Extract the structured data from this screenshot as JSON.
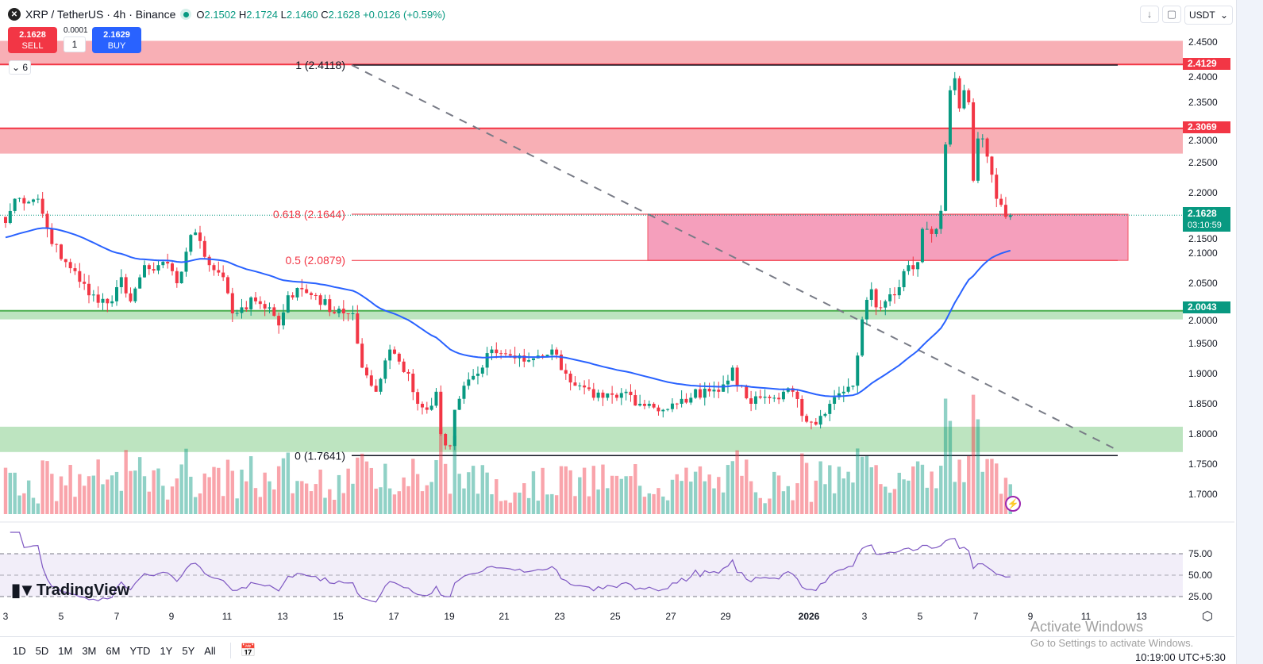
{
  "header": {
    "symbol": "XRP / TetherUS · 4h · Binance",
    "logo_icon": "xrp-logo",
    "o_label": "O",
    "o": "2.1502",
    "h_label": "H",
    "h": "2.1724",
    "l_label": "L",
    "l": "2.1460",
    "c_label": "C",
    "c": "2.1628",
    "change": "+0.0126 (+0.59%)",
    "status_color": "#089981"
  },
  "trade": {
    "sell_price": "2.1628",
    "sell_label": "SELL",
    "buy_price": "2.1629",
    "buy_label": "BUY",
    "spread": "0.0001",
    "quantity": "1",
    "indicators_count": "6"
  },
  "top_right": {
    "download_icon": "↓",
    "fullscreen_icon": "▢",
    "currency": "USDT"
  },
  "price_labels": [
    {
      "value": "2.4129",
      "color": "#f23645"
    },
    {
      "value": "2.3069",
      "color": "#f23645"
    },
    {
      "value": "2.1628",
      "countdown": "03:10:59",
      "color": "#089981"
    },
    {
      "value": "2.0043",
      "color": "#089981"
    }
  ],
  "price_axis": [
    "2.4500",
    "2.4000",
    "2.3500",
    "2.3000",
    "2.2500",
    "2.2000",
    "2.1500",
    "2.1000",
    "2.0500",
    "2.0000",
    "1.9500",
    "1.9000",
    "1.8500",
    "1.8000",
    "1.7500",
    "1.7000"
  ],
  "fib": {
    "levels": [
      {
        "ratio": "1",
        "label": "1 (2.4118)",
        "price": 2.4118,
        "color": "#131722"
      },
      {
        "ratio": "0.618",
        "label": "0.618 (2.1644)",
        "price": 2.1644,
        "color": "#f23645"
      },
      {
        "ratio": "0.5",
        "label": "0.5 (2.0879)",
        "price": 2.0879,
        "color": "#f23645"
      },
      {
        "ratio": "0",
        "label": "0 (1.7641)",
        "price": 1.7641,
        "color": "#131722"
      }
    ]
  },
  "zones": [
    {
      "name": "resistance-top",
      "from": 2.4129,
      "to": 2.452,
      "color": "#f7a1a8"
    },
    {
      "name": "resistance-mid",
      "from": 2.265,
      "to": 2.3069,
      "color": "#f7a1a8"
    },
    {
      "name": "support-mid",
      "from": 1.99,
      "to": 2.0043,
      "color": "#b2dfb5"
    },
    {
      "name": "support-low",
      "from": 1.77,
      "to": 1.812,
      "color": "#b2dfb5"
    }
  ],
  "x_axis": [
    "3",
    "5",
    "7",
    "9",
    "11",
    "13",
    "15",
    "17",
    "19",
    "21",
    "23",
    "25",
    "27",
    "29",
    "2026",
    "3",
    "5",
    "7",
    "9",
    "11",
    "13"
  ],
  "rsi_axis": [
    "75.00",
    "50.00",
    "25.00"
  ],
  "branding": "TradingView",
  "bottom": {
    "ranges": [
      "1D",
      "5D",
      "1M",
      "3M",
      "6M",
      "YTD",
      "1Y",
      "5Y",
      "All"
    ],
    "calendar_icon": "goto-date",
    "clock": "10:19:00 UTC+5:30"
  },
  "watermark": {
    "line1": "Activate Windows",
    "line2": "Go to Settings to activate Windows."
  },
  "chart_data": {
    "type": "candlestick",
    "interval": "4h",
    "ylim": [
      1.67,
      2.47
    ],
    "up_color": "#089981",
    "down_color": "#f23645",
    "ma_color": "#2962ff",
    "rsi_color": "#7e57c2",
    "close_path": [
      {
        "t": "2025-12-03T00:00",
        "c": 2.15
      },
      {
        "t": "2025-12-03T08:00",
        "c": 2.19
      },
      {
        "t": "2025-12-04T04:00",
        "c": 2.19
      },
      {
        "t": "2025-12-04T12:00",
        "c": 2.14
      },
      {
        "t": "2025-12-05T00:00",
        "c": 2.09
      },
      {
        "t": "2025-12-05T12:00",
        "c": 2.07
      },
      {
        "t": "2025-12-06T00:00",
        "c": 2.03
      },
      {
        "t": "2025-12-06T20:00",
        "c": 2.02
      },
      {
        "t": "2025-12-07T04:00",
        "c": 2.06
      },
      {
        "t": "2025-12-07T12:00",
        "c": 2.02
      },
      {
        "t": "2025-12-08T00:00",
        "c": 2.08
      },
      {
        "t": "2025-12-08T12:00",
        "c": 2.08
      },
      {
        "t": "2025-12-09T00:00",
        "c": 2.07
      },
      {
        "t": "2025-12-09T04:00",
        "c": 2.05
      },
      {
        "t": "2025-12-09T16:00",
        "c": 2.13
      },
      {
        "t": "2025-12-10T00:00",
        "c": 2.12
      },
      {
        "t": "2025-12-10T08:00",
        "c": 2.08
      },
      {
        "t": "2025-12-10T20:00",
        "c": 2.06
      },
      {
        "t": "2025-12-11T04:00",
        "c": 2.0
      },
      {
        "t": "2025-12-11T12:00",
        "c": 2.01
      },
      {
        "t": "2025-12-12T00:00",
        "c": 2.02
      },
      {
        "t": "2025-12-12T12:00",
        "c": 2.01
      },
      {
        "t": "2025-12-12T20:00",
        "c": 1.98
      },
      {
        "t": "2025-12-13T04:00",
        "c": 2.03
      },
      {
        "t": "2025-12-13T16:00",
        "c": 2.04
      },
      {
        "t": "2025-12-14T04:00",
        "c": 2.03
      },
      {
        "t": "2025-12-14T20:00",
        "c": 2.0
      },
      {
        "t": "2025-12-15T04:00",
        "c": 2.0
      },
      {
        "t": "2025-12-15T12:00",
        "c": 2.0
      },
      {
        "t": "2025-12-15T20:00",
        "c": 1.91
      },
      {
        "t": "2025-12-16T04:00",
        "c": 1.88
      },
      {
        "t": "2025-12-16T08:00",
        "c": 1.87
      },
      {
        "t": "2025-12-16T20:00",
        "c": 1.94
      },
      {
        "t": "2025-12-17T04:00",
        "c": 1.92
      },
      {
        "t": "2025-12-17T12:00",
        "c": 1.9
      },
      {
        "t": "2025-12-17T20:00",
        "c": 1.85
      },
      {
        "t": "2025-12-18T04:00",
        "c": 1.84
      },
      {
        "t": "2025-12-18T12:00",
        "c": 1.87
      },
      {
        "t": "2025-12-18T16:00",
        "c": 1.8
      },
      {
        "t": "2025-12-19T00:00",
        "c": 1.78
      },
      {
        "t": "2025-12-19T04:00",
        "c": 1.84
      },
      {
        "t": "2025-12-19T12:00",
        "c": 1.88
      },
      {
        "t": "2025-12-20T00:00",
        "c": 1.9
      },
      {
        "t": "2025-12-20T04:00",
        "c": 1.91
      },
      {
        "t": "2025-12-20T12:00",
        "c": 1.94
      },
      {
        "t": "2025-12-21T04:00",
        "c": 1.93
      },
      {
        "t": "2025-12-21T16:00",
        "c": 1.92
      },
      {
        "t": "2025-12-22T04:00",
        "c": 1.93
      },
      {
        "t": "2025-12-22T16:00",
        "c": 1.94
      },
      {
        "t": "2025-12-23T04:00",
        "c": 1.9
      },
      {
        "t": "2025-12-23T12:00",
        "c": 1.88
      },
      {
        "t": "2025-12-24T04:00",
        "c": 1.86
      },
      {
        "t": "2025-12-24T12:00",
        "c": 1.86
      },
      {
        "t": "2025-12-25T00:00",
        "c": 1.86
      },
      {
        "t": "2025-12-25T08:00",
        "c": 1.87
      },
      {
        "t": "2025-12-25T20:00",
        "c": 1.85
      },
      {
        "t": "2025-12-26T04:00",
        "c": 1.85
      },
      {
        "t": "2025-12-26T16:00",
        "c": 1.84
      },
      {
        "t": "2025-12-27T04:00",
        "c": 1.85
      },
      {
        "t": "2025-12-27T16:00",
        "c": 1.86
      },
      {
        "t": "2025-12-28T04:00",
        "c": 1.875
      },
      {
        "t": "2025-12-28T16:00",
        "c": 1.87
      },
      {
        "t": "2025-12-29T04:00",
        "c": 1.91
      },
      {
        "t": "2025-12-29T08:00",
        "c": 1.88
      },
      {
        "t": "2025-12-29T20:00",
        "c": 1.85
      },
      {
        "t": "2025-12-30T04:00",
        "c": 1.86
      },
      {
        "t": "2025-12-30T16:00",
        "c": 1.86
      },
      {
        "t": "2025-12-31T00:00",
        "c": 1.87
      },
      {
        "t": "2025-12-31T08:00",
        "c": 1.87
      },
      {
        "t": "2025-12-31T16:00",
        "c": 1.83
      },
      {
        "t": "2026-01-01T00:00",
        "c": 1.82
      },
      {
        "t": "2026-01-01T08:00",
        "c": 1.83
      },
      {
        "t": "2026-01-01T16:00",
        "c": 1.85
      },
      {
        "t": "2026-01-02T04:00",
        "c": 1.87
      },
      {
        "t": "2026-01-02T12:00",
        "c": 1.88
      },
      {
        "t": "2026-01-02T16:00",
        "c": 1.93
      },
      {
        "t": "2026-01-02T20:00",
        "c": 1.99
      },
      {
        "t": "2026-01-03T04:00",
        "c": 2.04
      },
      {
        "t": "2026-01-03T08:00",
        "c": 2.01
      },
      {
        "t": "2026-01-03T16:00",
        "c": 2.02
      },
      {
        "t": "2026-01-04T00:00",
        "c": 2.03
      },
      {
        "t": "2026-01-04T08:00",
        "c": 2.07
      },
      {
        "t": "2026-01-04T12:00",
        "c": 2.08
      },
      {
        "t": "2026-01-04T20:00",
        "c": 2.085
      },
      {
        "t": "2026-01-05T00:00",
        "c": 2.14
      },
      {
        "t": "2026-01-05T04:00",
        "c": 2.14
      },
      {
        "t": "2026-01-05T12:00",
        "c": 2.14
      },
      {
        "t": "2026-01-05T16:00",
        "c": 2.17
      },
      {
        "t": "2026-01-05T20:00",
        "c": 2.28
      },
      {
        "t": "2026-01-06T00:00",
        "c": 2.37
      },
      {
        "t": "2026-01-06T04:00",
        "c": 2.39
      },
      {
        "t": "2026-01-06T08:00",
        "c": 2.34
      },
      {
        "t": "2026-01-06T12:00",
        "c": 2.37
      },
      {
        "t": "2026-01-06T16:00",
        "c": 2.35
      },
      {
        "t": "2026-01-06T20:00",
        "c": 2.22
      },
      {
        "t": "2026-01-07T00:00",
        "c": 2.29
      },
      {
        "t": "2026-01-07T04:00",
        "c": 2.29
      },
      {
        "t": "2026-01-07T08:00",
        "c": 2.26
      },
      {
        "t": "2026-01-07T12:00",
        "c": 2.23
      },
      {
        "t": "2026-01-07T16:00",
        "c": 2.19
      },
      {
        "t": "2026-01-07T20:00",
        "c": 2.18
      },
      {
        "t": "2026-01-08T00:00",
        "c": 2.16
      },
      {
        "t": "2026-01-08T04:00",
        "c": 2.1628
      }
    ]
  }
}
